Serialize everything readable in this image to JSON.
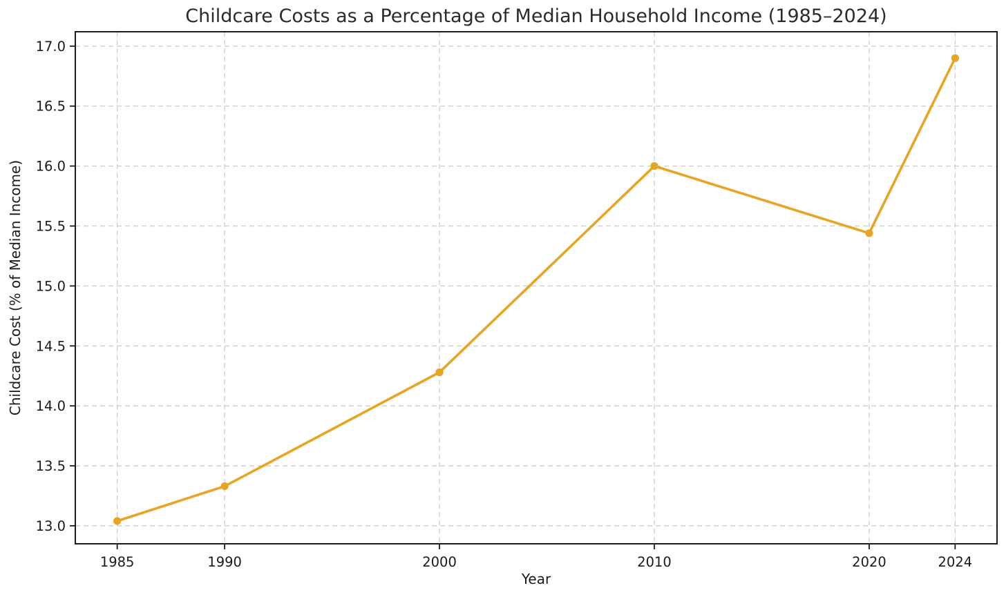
{
  "figure": {
    "background": "#ffffff"
  },
  "chart_data": {
    "type": "line",
    "title": "Childcare Costs as a Percentage of Median Household Income (1985–2024)",
    "xlabel": "Year",
    "ylabel": "Childcare Cost (% of Median Income)",
    "x": [
      1985,
      1990,
      2000,
      2010,
      2020,
      2024
    ],
    "y": [
      13.04,
      13.33,
      14.28,
      16.0,
      15.44,
      16.9
    ],
    "xlim": [
      1983.05,
      2025.95
    ],
    "ylim": [
      12.85,
      17.12
    ],
    "xticks": [
      1985,
      1990,
      2000,
      2010,
      2020,
      2024
    ],
    "xtick_labels": [
      "1985",
      "1990",
      "2000",
      "2010",
      "2020",
      "2024"
    ],
    "yticks": [
      13.0,
      13.5,
      14.0,
      14.5,
      15.0,
      15.5,
      16.0,
      16.5,
      17.0
    ],
    "ytick_labels": [
      "13.0",
      "13.5",
      "14.0",
      "14.5",
      "15.0",
      "15.5",
      "16.0",
      "16.5",
      "17.0"
    ],
    "grid": true,
    "grid_style": "dashed",
    "legend": "none",
    "marker": "circle",
    "colors": {
      "line": "#E8A423",
      "marker": "#E8A423",
      "grid": "#CCCCCC",
      "axis": "#1A1A1A",
      "text": "#1A1A1A",
      "title": "#2B2B2B",
      "background": "#FFFFFF"
    }
  }
}
